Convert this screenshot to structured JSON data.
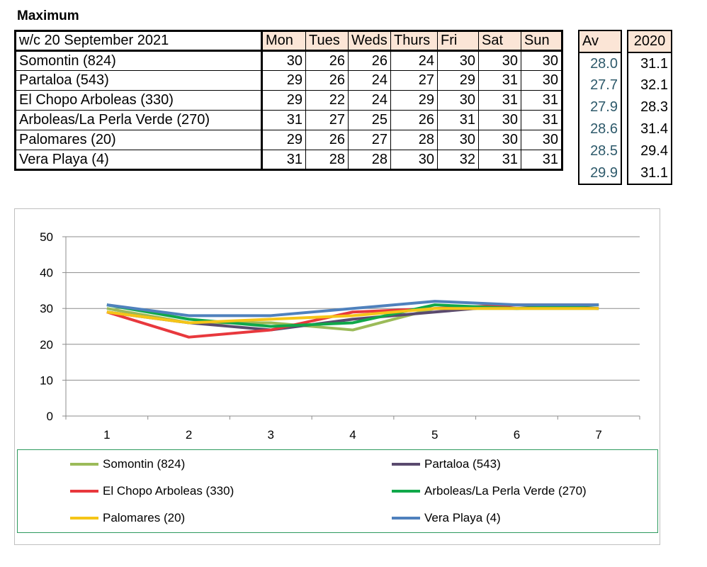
{
  "heading": "Maximum",
  "table": {
    "header": {
      "week": "w/c 20 September 2021",
      "days": [
        "Mon",
        "Tues",
        "Weds",
        "Thurs",
        "Fri",
        "Sat",
        "Sun"
      ],
      "av": "Av",
      "prev": "2020"
    },
    "rows": [
      {
        "name": "Somontin (824)",
        "values": [
          "30",
          "26",
          "26",
          "24",
          "30",
          "30",
          "30"
        ],
        "av": "28.0",
        "prev": "31.1"
      },
      {
        "name": "Partaloa (543)",
        "values": [
          "29",
          "26",
          "24",
          "27",
          "29",
          "31",
          "30"
        ],
        "av": "27.7",
        "prev": "32.1"
      },
      {
        "name": "El Chopo  Arboleas (330)",
        "values": [
          "29",
          "22",
          "24",
          "29",
          "30",
          "31",
          "31"
        ],
        "av": "27.9",
        "prev": "28.3"
      },
      {
        "name": "Arboleas/La Perla Verde (270)",
        "values": [
          "31",
          "27",
          "25",
          "26",
          "31",
          "30",
          "31"
        ],
        "av": "28.6",
        "prev": "31.4"
      },
      {
        "name": "Palomares (20)",
        "values": [
          "29",
          "26",
          "27",
          "28",
          "30",
          "30",
          "30"
        ],
        "av": "28.5",
        "prev": "29.4"
      },
      {
        "name": "Vera Playa (4)",
        "values": [
          "31",
          "28",
          "28",
          "30",
          "32",
          "31",
          "31"
        ],
        "av": "29.9",
        "prev": "31.1"
      }
    ]
  },
  "chart_data": {
    "type": "line",
    "x": [
      1,
      2,
      3,
      4,
      5,
      6,
      7
    ],
    "ylim": [
      0,
      50
    ],
    "yticks": [
      0,
      10,
      20,
      30,
      40,
      50
    ],
    "grid": true,
    "legend_placement": "bottom",
    "series": [
      {
        "name": "Somontin (824)",
        "color": "#9bbb59",
        "values": [
          30,
          26,
          26,
          24,
          30,
          30,
          30
        ]
      },
      {
        "name": "Partaloa (543)",
        "color": "#5a4a6e",
        "values": [
          29,
          26,
          24,
          27,
          29,
          31,
          30
        ]
      },
      {
        "name": "El Chopo  Arboleas (330)",
        "color": "#e8383d",
        "values": [
          29,
          22,
          24,
          29,
          30,
          31,
          31
        ]
      },
      {
        "name": "Arboleas/La Perla Verde (270)",
        "color": "#10a84a",
        "values": [
          31,
          27,
          25,
          26,
          31,
          30,
          31
        ]
      },
      {
        "name": "Palomares (20)",
        "color": "#f5c518",
        "values": [
          29,
          26,
          27,
          28,
          30,
          30,
          30
        ]
      },
      {
        "name": "Vera Playa (4)",
        "color": "#4f81bd",
        "values": [
          31,
          28,
          28,
          30,
          32,
          31,
          31
        ]
      }
    ]
  }
}
